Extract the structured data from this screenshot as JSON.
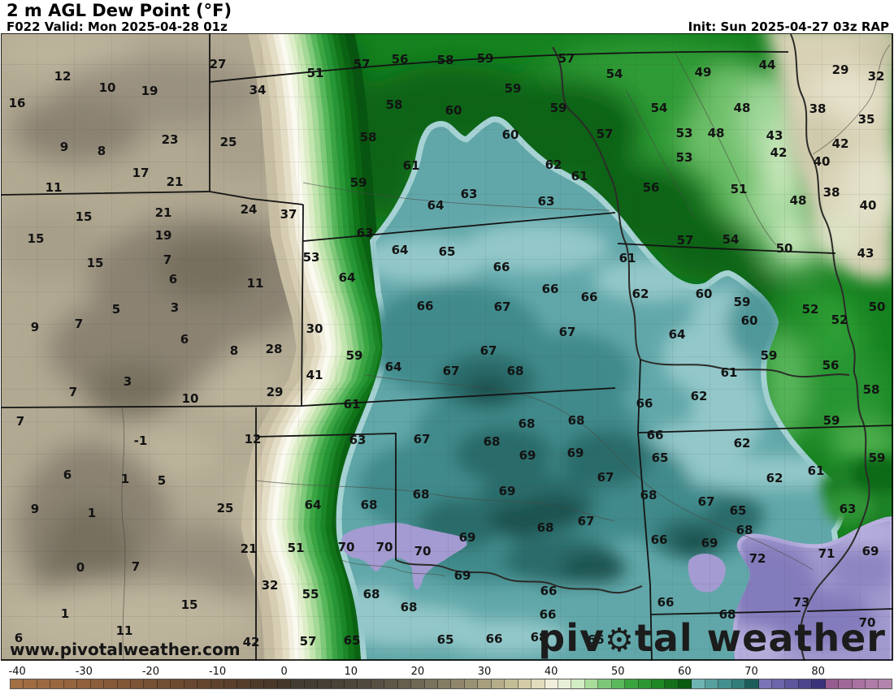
{
  "header": {
    "title": "2 m AGL Dew Point (°F)",
    "forecast_line": "F022 Valid: Mon 2025-04-28 01z",
    "init_line": "Init: Sun 2025-04-27 03z RAP"
  },
  "watermark": "www.pivotalweather.com",
  "logo": {
    "prefix": "piv",
    "gear": "⚙",
    "suffix": "tal weather"
  },
  "colorbar": {
    "unit": "°F",
    "min": -41,
    "max": 91,
    "cell_step": 2,
    "ticks": [
      -40,
      -30,
      -20,
      -10,
      0,
      10,
      20,
      30,
      40,
      50,
      60,
      70,
      80
    ],
    "cell_colors": [
      "#a26e43",
      "#9f6c42",
      "#9c6a41",
      "#98673f",
      "#94643e",
      "#90613c",
      "#8b5e3b",
      "#865a39",
      "#815737",
      "#7c5436",
      "#775134",
      "#724e33",
      "#6d4b31",
      "#684830",
      "#63452e",
      "#5e422d",
      "#593f2c",
      "#543d2b",
      "#4f3b2a",
      "#4a392a",
      "#45382b",
      "#423c32",
      "#433d33",
      "#453f35",
      "#484237",
      "#4c463a",
      "#514a3e",
      "#575042",
      "#5e5747",
      "#665f4e",
      "#6f6854",
      "#79725c",
      "#847c63",
      "#8f866b",
      "#9b9274",
      "#a89f7e",
      "#b5ad8a",
      "#c4bc97",
      "#d3cba6",
      "#e2dbbc",
      "#f0eedc",
      "#e8f0d8",
      "#d2ecc4",
      "#a8dc9a",
      "#7cc878",
      "#5cb85c",
      "#3aa33e",
      "#2d9632",
      "#1f8724",
      "#156f1b",
      "#0a5a10",
      "#6fb4b3",
      "#57a09e",
      "#44908e",
      "#327d7a",
      "#1d5e5a",
      "#7b74b6",
      "#6c65aa",
      "#5d569c",
      "#4c458c",
      "#3a337a",
      "#965c90",
      "#a06898",
      "#a872a0",
      "#ae7ca6",
      "#b485ac"
    ]
  },
  "map_data": {
    "type": "heatmap",
    "quantity": "2 m AGL dew point temperature (°F)",
    "region": "US central plains (WY/CO/NM west to IL/AR east)",
    "stations": [
      [
        77,
        94,
        "12"
      ],
      [
        132,
        108,
        "10"
      ],
      [
        184,
        112,
        "19"
      ],
      [
        21,
        127,
        "16"
      ],
      [
        268,
        79,
        "27"
      ],
      [
        317,
        111,
        "34"
      ],
      [
        79,
        181,
        "9"
      ],
      [
        125,
        186,
        "8"
      ],
      [
        209,
        172,
        "23"
      ],
      [
        281,
        175,
        "25"
      ],
      [
        173,
        213,
        "17"
      ],
      [
        215,
        224,
        "21"
      ],
      [
        66,
        231,
        "11"
      ],
      [
        103,
        267,
        "15"
      ],
      [
        44,
        294,
        "15"
      ],
      [
        201,
        262,
        "21"
      ],
      [
        201,
        290,
        "19"
      ],
      [
        306,
        258,
        "24"
      ],
      [
        355,
        264,
        "37"
      ],
      [
        388,
        90,
        "51"
      ],
      [
        445,
        79,
        "57"
      ],
      [
        492,
        73,
        "56"
      ],
      [
        548,
        74,
        "58"
      ],
      [
        597,
        72,
        "59"
      ],
      [
        697,
        72,
        "57"
      ],
      [
        631,
        109,
        "59"
      ],
      [
        687,
        133,
        "59"
      ],
      [
        485,
        129,
        "58"
      ],
      [
        558,
        136,
        "60"
      ],
      [
        453,
        169,
        "58"
      ],
      [
        628,
        166,
        "60"
      ],
      [
        506,
        204,
        "61"
      ],
      [
        681,
        203,
        "62"
      ],
      [
        713,
        217,
        "61"
      ],
      [
        441,
        225,
        "59"
      ],
      [
        577,
        239,
        "63"
      ],
      [
        672,
        248,
        "63"
      ],
      [
        536,
        253,
        "64"
      ],
      [
        449,
        287,
        "63"
      ],
      [
        492,
        308,
        "64"
      ],
      [
        550,
        310,
        "65"
      ],
      [
        756,
        91,
        "54"
      ],
      [
        865,
        89,
        "49"
      ],
      [
        944,
        80,
        "44"
      ],
      [
        1034,
        86,
        "29"
      ],
      [
        1078,
        94,
        "32"
      ],
      [
        811,
        133,
        "54"
      ],
      [
        913,
        133,
        "48"
      ],
      [
        1006,
        134,
        "38"
      ],
      [
        1066,
        147,
        "35"
      ],
      [
        744,
        165,
        "57"
      ],
      [
        842,
        164,
        "53"
      ],
      [
        881,
        164,
        "48"
      ],
      [
        953,
        167,
        "43"
      ],
      [
        1034,
        177,
        "42"
      ],
      [
        958,
        188,
        "42"
      ],
      [
        842,
        194,
        "53"
      ],
      [
        1011,
        199,
        "40"
      ],
      [
        801,
        231,
        "56"
      ],
      [
        909,
        233,
        "51"
      ],
      [
        1023,
        237,
        "38"
      ],
      [
        1068,
        253,
        "40"
      ],
      [
        982,
        247,
        "48"
      ],
      [
        843,
        296,
        "57"
      ],
      [
        899,
        295,
        "54"
      ],
      [
        965,
        306,
        "50"
      ],
      [
        1065,
        312,
        "43"
      ],
      [
        117,
        324,
        "15"
      ],
      [
        206,
        320,
        "7"
      ],
      [
        213,
        344,
        "6"
      ],
      [
        314,
        349,
        "11"
      ],
      [
        143,
        381,
        "5"
      ],
      [
        215,
        379,
        "3"
      ],
      [
        43,
        403,
        "9"
      ],
      [
        97,
        399,
        "7"
      ],
      [
        227,
        418,
        "6"
      ],
      [
        288,
        432,
        "8"
      ],
      [
        337,
        430,
        "28"
      ],
      [
        157,
        470,
        "3"
      ],
      [
        90,
        483,
        "7"
      ],
      [
        234,
        491,
        "10"
      ],
      [
        338,
        483,
        "29"
      ],
      [
        25,
        519,
        "7"
      ],
      [
        173,
        543,
        "-1"
      ],
      [
        311,
        541,
        "12"
      ],
      [
        83,
        585,
        "6"
      ],
      [
        154,
        590,
        "1"
      ],
      [
        199,
        592,
        "5"
      ],
      [
        277,
        626,
        "25"
      ],
      [
        43,
        627,
        "9"
      ],
      [
        113,
        632,
        "1"
      ],
      [
        99,
        699,
        "0"
      ],
      [
        167,
        698,
        "7"
      ],
      [
        306,
        676,
        "21"
      ],
      [
        364,
        675,
        "51"
      ],
      [
        332,
        721,
        "32"
      ],
      [
        233,
        745,
        "15"
      ],
      [
        80,
        756,
        "1"
      ],
      [
        153,
        777,
        "11"
      ],
      [
        23,
        786,
        "6"
      ],
      [
        309,
        791,
        "42"
      ],
      [
        383,
        317,
        "53"
      ],
      [
        427,
        342,
        "64"
      ],
      [
        617,
        329,
        "66"
      ],
      [
        677,
        356,
        "66"
      ],
      [
        725,
        366,
        "66"
      ],
      [
        523,
        377,
        "66"
      ],
      [
        618,
        378,
        "67"
      ],
      [
        698,
        409,
        "67"
      ],
      [
        387,
        405,
        "30"
      ],
      [
        436,
        438,
        "59"
      ],
      [
        387,
        462,
        "41"
      ],
      [
        484,
        452,
        "64"
      ],
      [
        555,
        457,
        "67"
      ],
      [
        601,
        432,
        "67"
      ],
      [
        634,
        457,
        "68"
      ],
      [
        433,
        498,
        "61"
      ],
      [
        440,
        542,
        "63"
      ],
      [
        519,
        541,
        "67"
      ],
      [
        648,
        522,
        "68"
      ],
      [
        709,
        518,
        "68"
      ],
      [
        605,
        544,
        "68"
      ],
      [
        649,
        561,
        "69"
      ],
      [
        708,
        558,
        "69"
      ],
      [
        772,
        318,
        "61"
      ],
      [
        788,
        362,
        "62"
      ],
      [
        866,
        362,
        "60"
      ],
      [
        913,
        372,
        "59"
      ],
      [
        922,
        395,
        "60"
      ],
      [
        997,
        381,
        "52"
      ],
      [
        1033,
        394,
        "52"
      ],
      [
        1079,
        378,
        "50"
      ],
      [
        833,
        412,
        "64"
      ],
      [
        946,
        438,
        "59"
      ],
      [
        1022,
        450,
        "56"
      ],
      [
        897,
        459,
        "61"
      ],
      [
        860,
        488,
        "62"
      ],
      [
        1072,
        480,
        "58"
      ],
      [
        793,
        497,
        "66"
      ],
      [
        1023,
        518,
        "59"
      ],
      [
        806,
        536,
        "66"
      ],
      [
        913,
        546,
        "62"
      ],
      [
        812,
        564,
        "65"
      ],
      [
        1079,
        564,
        "59"
      ],
      [
        385,
        622,
        "64"
      ],
      [
        454,
        622,
        "68"
      ],
      [
        518,
        609,
        "68"
      ],
      [
        624,
        605,
        "69"
      ],
      [
        721,
        642,
        "67"
      ],
      [
        671,
        650,
        "68"
      ],
      [
        426,
        674,
        "70"
      ],
      [
        473,
        674,
        "70"
      ],
      [
        520,
        679,
        "70"
      ],
      [
        575,
        662,
        "69"
      ],
      [
        569,
        709,
        "69"
      ],
      [
        382,
        732,
        "55"
      ],
      [
        457,
        732,
        "68"
      ],
      [
        503,
        748,
        "68"
      ],
      [
        675,
        728,
        "66"
      ],
      [
        674,
        757,
        "66"
      ],
      [
        379,
        790,
        "57"
      ],
      [
        433,
        789,
        "65"
      ],
      [
        548,
        788,
        "65"
      ],
      [
        608,
        787,
        "66"
      ],
      [
        663,
        785,
        "68"
      ],
      [
        733,
        788,
        "66"
      ],
      [
        745,
        588,
        "67"
      ],
      [
        798,
        610,
        "68"
      ],
      [
        953,
        589,
        "62"
      ],
      [
        1004,
        580,
        "61"
      ],
      [
        869,
        618,
        "67"
      ],
      [
        908,
        629,
        "65"
      ],
      [
        1043,
        627,
        "63"
      ],
      [
        916,
        653,
        "68"
      ],
      [
        811,
        665,
        "66"
      ],
      [
        873,
        669,
        "69"
      ],
      [
        932,
        688,
        "72"
      ],
      [
        1017,
        682,
        "71"
      ],
      [
        1071,
        679,
        "69"
      ],
      [
        819,
        742,
        "66"
      ],
      [
        986,
        742,
        "73"
      ],
      [
        895,
        757,
        "68"
      ],
      [
        1067,
        767,
        "70"
      ]
    ]
  }
}
